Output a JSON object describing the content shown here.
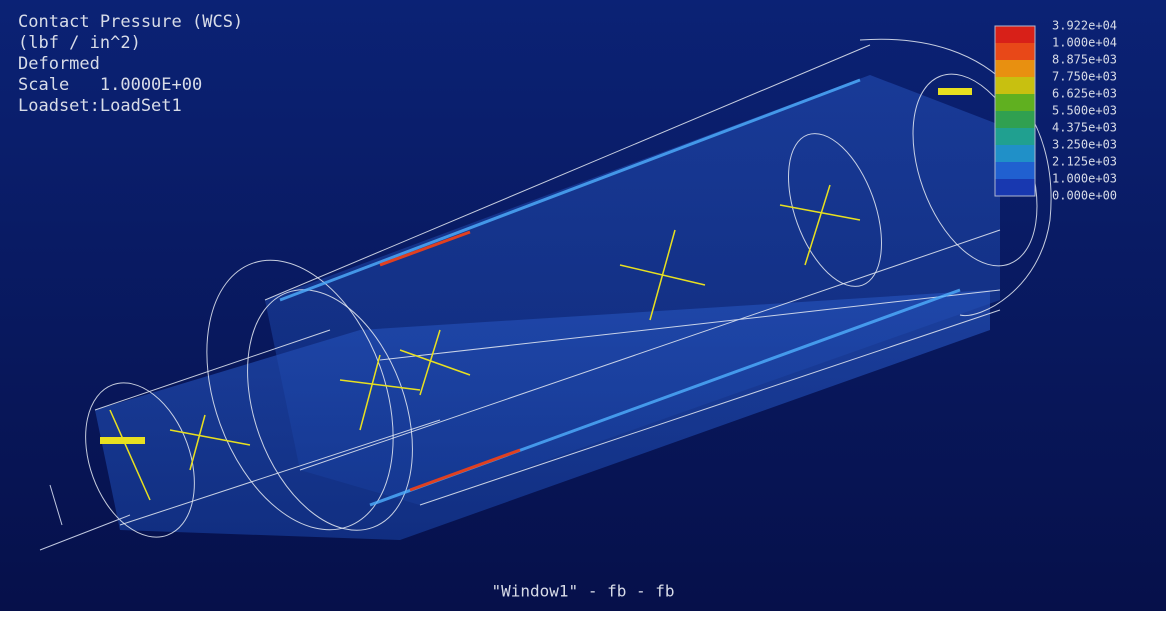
{
  "header": {
    "lines": [
      "Contact Pressure (WCS)",
      "(lbf / in^2)",
      "Deformed",
      "Scale   1.0000E+00",
      "Loadset:LoadSet1"
    ]
  },
  "legend": {
    "labels": [
      "3.922e+04",
      "1.000e+04",
      "8.875e+03",
      "7.750e+03",
      "6.625e+03",
      "5.500e+03",
      "4.375e+03",
      "3.250e+03",
      "2.125e+03",
      "1.000e+03",
      "0.000e+00"
    ]
  },
  "footer": {
    "window_label": "\"Window1\" - fb - fb"
  }
}
